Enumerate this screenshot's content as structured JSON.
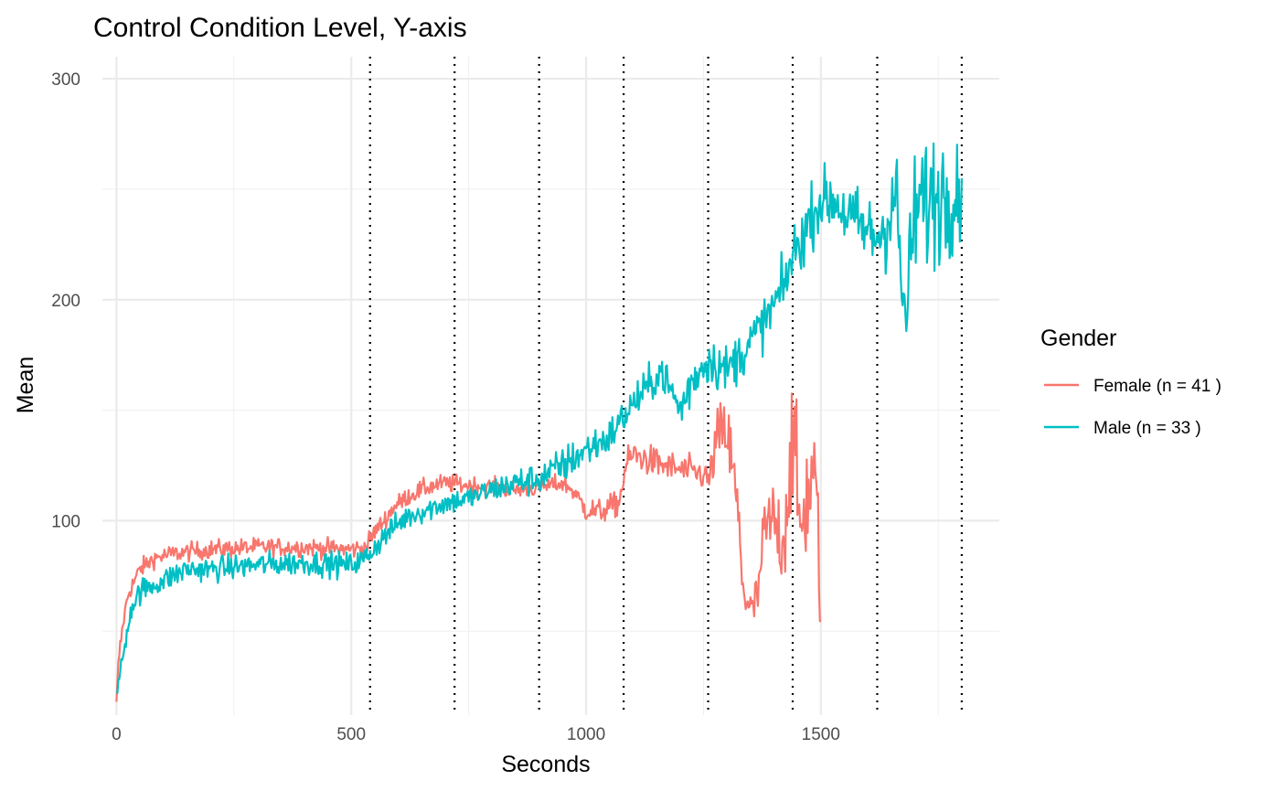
{
  "chart_data": {
    "type": "line",
    "title": "Control Condition Level, Y-axis",
    "xlabel": "Seconds",
    "ylabel": "Mean",
    "xlim": [
      -30,
      1880
    ],
    "ylim": [
      12,
      310
    ],
    "x_ticks": [
      0,
      500,
      1000,
      1500
    ],
    "x_minor_ticks": [
      250,
      750,
      1250,
      1750
    ],
    "y_ticks": [
      100,
      200,
      300
    ],
    "y_minor_ticks": [
      50,
      150,
      250
    ],
    "grid": true,
    "vertical_lines": [
      540,
      720,
      900,
      1080,
      1260,
      1440,
      1620,
      1800
    ],
    "vertical_line_style": "dotted",
    "legend": {
      "title": "Gender",
      "placement": "right"
    },
    "series": [
      {
        "name": "Female (n = 41 )",
        "color": "#F8766D",
        "x_start": 0,
        "x_end": 1500,
        "knots": [
          [
            0,
            18
          ],
          [
            5,
            38
          ],
          [
            15,
            55
          ],
          [
            25,
            67
          ],
          [
            50,
            78
          ],
          [
            80,
            83
          ],
          [
            120,
            85
          ],
          [
            200,
            87
          ],
          [
            300,
            88
          ],
          [
            400,
            88
          ],
          [
            500,
            87
          ],
          [
            530,
            88
          ],
          [
            550,
            95
          ],
          [
            570,
            100
          ],
          [
            590,
            106
          ],
          [
            620,
            111
          ],
          [
            660,
            115
          ],
          [
            700,
            117
          ],
          [
            750,
            116
          ],
          [
            800,
            115
          ],
          [
            850,
            114
          ],
          [
            900,
            115
          ],
          [
            950,
            117
          ],
          [
            970,
            114
          ],
          [
            1000,
            105
          ],
          [
            1030,
            104
          ],
          [
            1070,
            108
          ],
          [
            1085,
            125
          ],
          [
            1100,
            130
          ],
          [
            1150,
            126
          ],
          [
            1200,
            123
          ],
          [
            1250,
            121
          ],
          [
            1262,
            118
          ],
          [
            1280,
            138
          ],
          [
            1300,
            140
          ],
          [
            1320,
            110
          ],
          [
            1335,
            70
          ],
          [
            1350,
            58
          ],
          [
            1365,
            65
          ],
          [
            1380,
            95
          ],
          [
            1400,
            100
          ],
          [
            1420,
            90
          ],
          [
            1440,
            140
          ],
          [
            1455,
            95
          ],
          [
            1470,
            110
          ],
          [
            1485,
            122
          ],
          [
            1495,
            90
          ],
          [
            1500,
            55
          ]
        ],
        "noise": [
          2.5,
          3,
          3,
          3,
          3,
          3,
          3,
          3,
          3,
          3,
          3,
          3,
          3,
          3,
          3,
          3,
          3,
          3,
          3,
          3,
          3,
          3,
          3,
          3,
          4,
          4,
          4,
          5,
          5,
          5,
          5,
          5,
          5,
          10,
          12,
          15,
          10,
          8,
          8,
          12,
          14,
          15,
          25,
          20,
          20,
          18,
          20,
          5
        ]
      },
      {
        "name": "Male (n = 33 )",
        "color": "#00BFC4",
        "x_start": 0,
        "x_end": 1800,
        "knots": [
          [
            0,
            22
          ],
          [
            15,
            40
          ],
          [
            30,
            60
          ],
          [
            50,
            68
          ],
          [
            100,
            73
          ],
          [
            150,
            78
          ],
          [
            200,
            78
          ],
          [
            300,
            80
          ],
          [
            400,
            81
          ],
          [
            500,
            80
          ],
          [
            530,
            83
          ],
          [
            550,
            88
          ],
          [
            580,
            95
          ],
          [
            620,
            102
          ],
          [
            700,
            108
          ],
          [
            750,
            110
          ],
          [
            800,
            114
          ],
          [
            850,
            117
          ],
          [
            900,
            119
          ],
          [
            950,
            125
          ],
          [
            1000,
            132
          ],
          [
            1050,
            138
          ],
          [
            1080,
            147
          ],
          [
            1100,
            153
          ],
          [
            1130,
            160
          ],
          [
            1160,
            168
          ],
          [
            1200,
            150
          ],
          [
            1230,
            165
          ],
          [
            1260,
            173
          ],
          [
            1300,
            168
          ],
          [
            1340,
            178
          ],
          [
            1380,
            190
          ],
          [
            1420,
            205
          ],
          [
            1440,
            220
          ],
          [
            1460,
            228
          ],
          [
            1480,
            238
          ],
          [
            1500,
            245
          ],
          [
            1530,
            245
          ],
          [
            1560,
            237
          ],
          [
            1590,
            232
          ],
          [
            1620,
            228
          ],
          [
            1640,
            235
          ],
          [
            1660,
            250
          ],
          [
            1670,
            210
          ],
          [
            1680,
            190
          ],
          [
            1700,
            240
          ],
          [
            1730,
            245
          ],
          [
            1760,
            248
          ],
          [
            1800,
            255
          ]
        ],
        "noise": [
          3,
          3,
          4,
          4,
          4,
          4,
          4,
          4,
          4,
          4,
          4,
          4,
          4,
          4,
          4,
          4,
          4,
          5,
          5,
          6,
          6,
          6,
          6,
          6,
          6,
          6,
          8,
          8,
          8,
          8,
          8,
          8,
          9,
          9,
          10,
          10,
          10,
          10,
          12,
          12,
          12,
          15,
          18,
          15,
          15,
          20,
          22,
          22,
          22
        ]
      }
    ]
  }
}
